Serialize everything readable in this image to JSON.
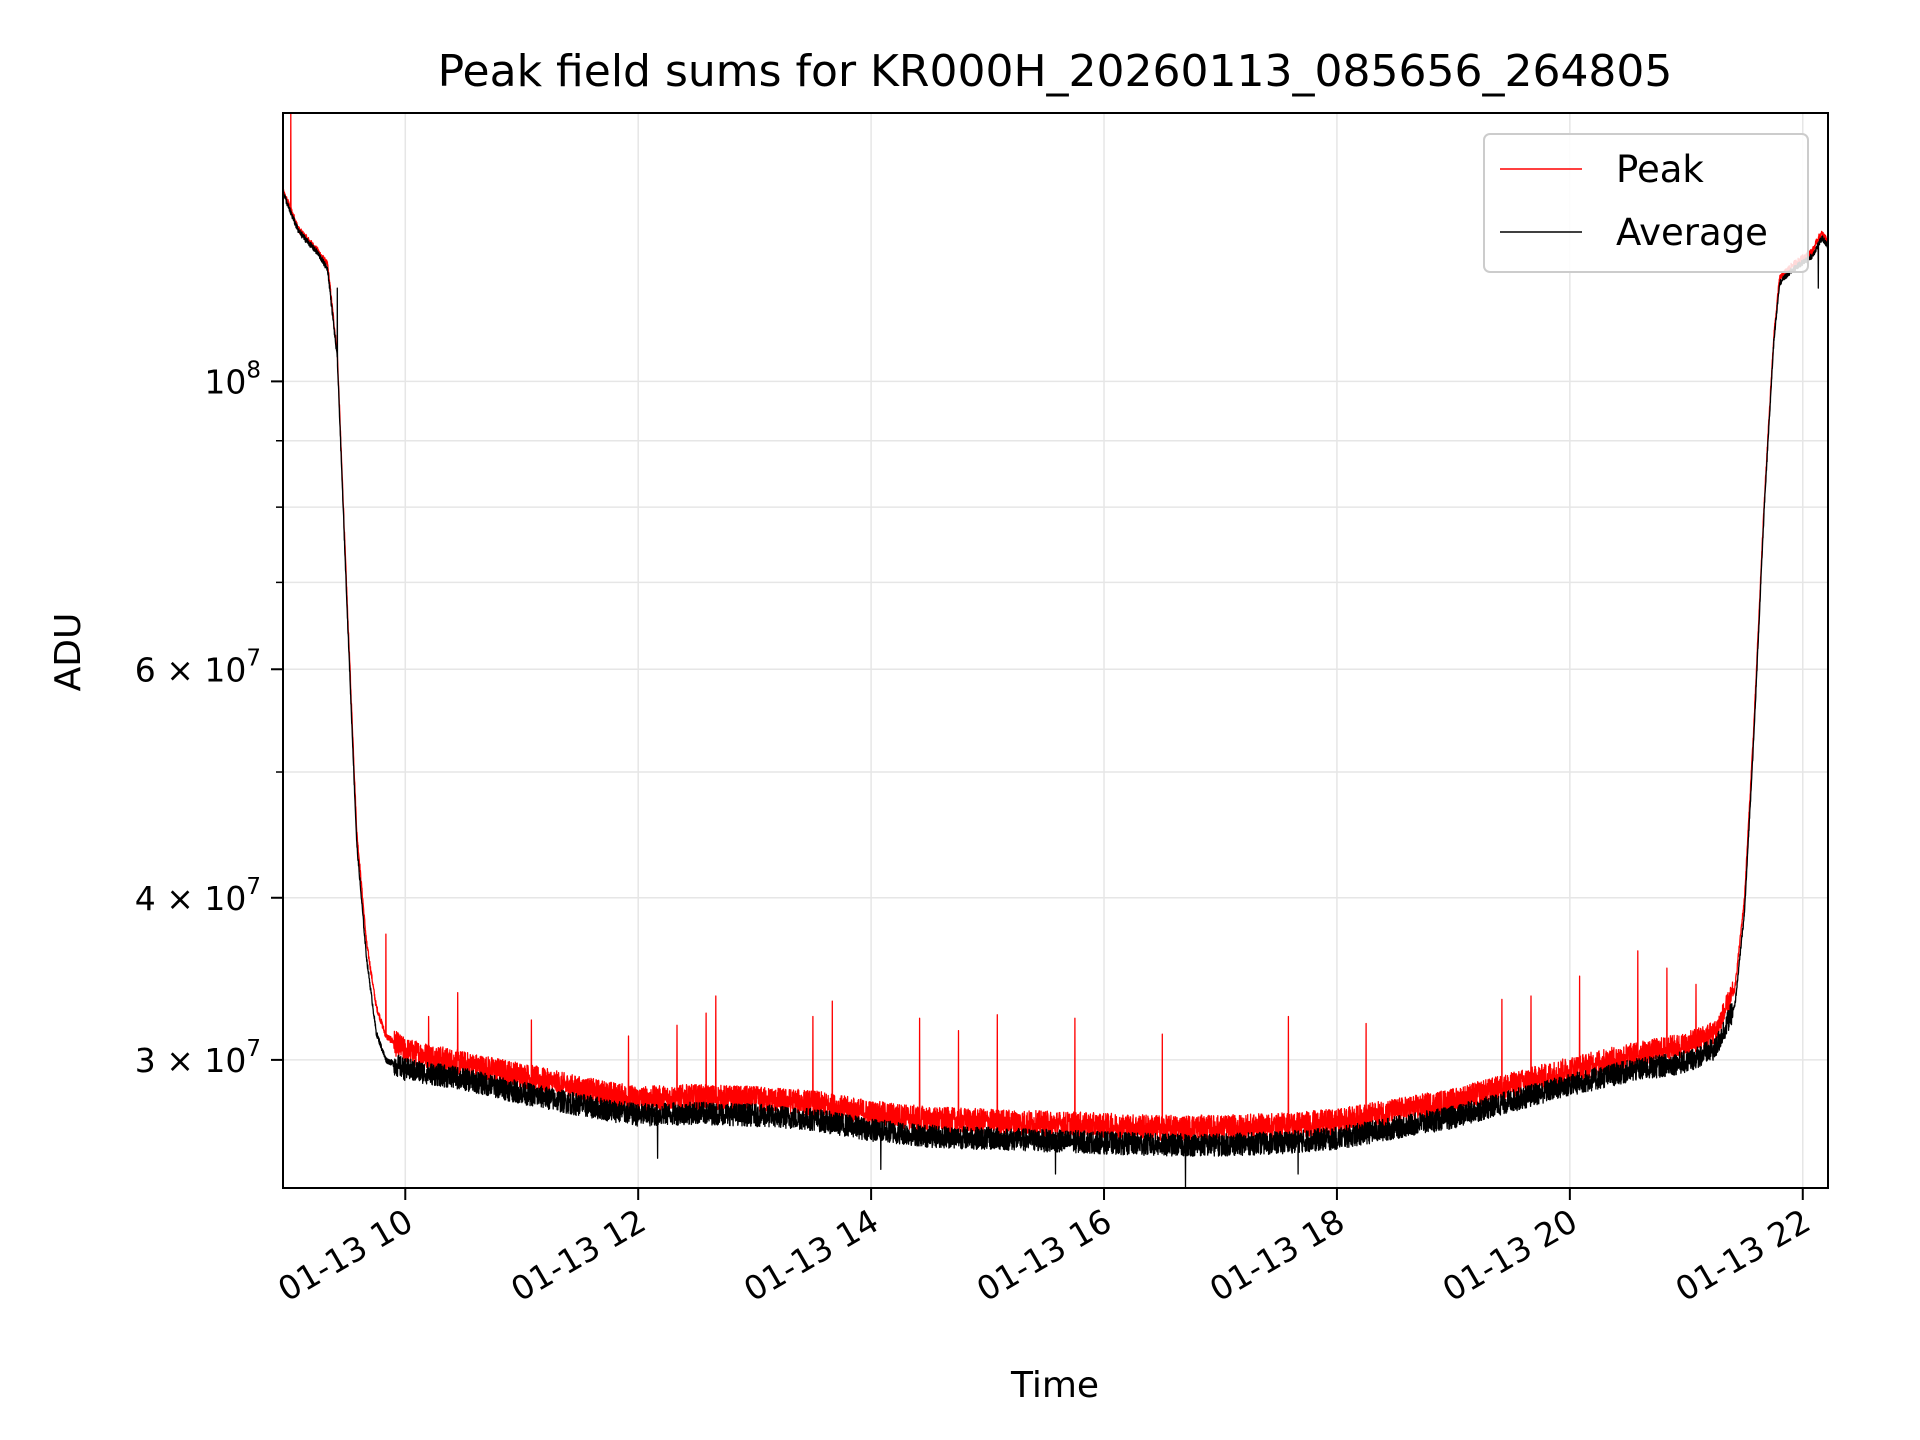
{
  "colors": {
    "peak": "#ff0000",
    "average": "#000000",
    "grid": "#e6e6e6",
    "axis": "#000000",
    "background": "#ffffff"
  },
  "chart_data": {
    "type": "line",
    "title": "Peak field sums for KR000H_20260113_085656_264805",
    "xlabel": "Time",
    "ylabel": "ADU",
    "x_date": "2026-01-13",
    "x_range": [
      "2026-01-13 08:57",
      "2026-01-13 22:13"
    ],
    "y_scale": "log",
    "ylim": [
      23900000,
      161000000
    ],
    "grid": true,
    "legend_position": "upper right",
    "x_ticks": [
      {
        "value": "2026-01-13 10:00",
        "label": "01-13 10"
      },
      {
        "value": "2026-01-13 12:00",
        "label": "01-13 12"
      },
      {
        "value": "2026-01-13 14:00",
        "label": "01-13 14"
      },
      {
        "value": "2026-01-13 16:00",
        "label": "01-13 16"
      },
      {
        "value": "2026-01-13 18:00",
        "label": "01-13 18"
      },
      {
        "value": "2026-01-13 20:00",
        "label": "01-13 20"
      },
      {
        "value": "2026-01-13 22:00",
        "label": "01-13 22"
      }
    ],
    "y_ticks_major": [
      {
        "value": 30000000,
        "label": "3 × 10",
        "exp": "7"
      },
      {
        "value": 40000000,
        "label": "4 × 10",
        "exp": "7"
      },
      {
        "value": 60000000,
        "label": "6 × 10",
        "exp": "7"
      },
      {
        "value": 100000000,
        "label": "10",
        "exp": "8"
      }
    ],
    "y_ticks_minor": [
      50000000,
      70000000,
      80000000,
      90000000
    ],
    "series": [
      {
        "name": "Peak",
        "color": "#ff0000",
        "x": [
          "08:57",
          "09:00",
          "09:05",
          "09:10",
          "09:15",
          "09:20",
          "09:25",
          "09:30",
          "09:35",
          "09:40",
          "09:45",
          "09:50",
          "10:00",
          "10:30",
          "11:00",
          "11:30",
          "12:00",
          "12:30",
          "13:00",
          "13:30",
          "14:00",
          "14:30",
          "15:00",
          "15:30",
          "16:00",
          "16:30",
          "17:00",
          "17:30",
          "18:00",
          "18:30",
          "19:00",
          "19:30",
          "20:00",
          "20:30",
          "21:00",
          "21:15",
          "21:25",
          "21:30",
          "21:35",
          "21:40",
          "21:45",
          "21:48",
          "21:50",
          "21:55",
          "22:00",
          "22:05",
          "22:08",
          "22:10",
          "22:13"
        ],
        "y": [
          140000000,
          137000000,
          131000000,
          128500000,
          126000000,
          123000000,
          105000000,
          68000000,
          45000000,
          37000000,
          33000000,
          31300000,
          30500000,
          29800000,
          29200000,
          28500000,
          28000000,
          28100000,
          28000000,
          27800000,
          27300000,
          27000000,
          26900000,
          26800000,
          26700000,
          26600000,
          26600000,
          26700000,
          26900000,
          27400000,
          27900000,
          28700000,
          29500000,
          30200000,
          30800000,
          31500000,
          34000000,
          40000000,
          55000000,
          80000000,
          108000000,
          120000000,
          121000000,
          123000000,
          124500000,
          126000000,
          129000000,
          130000000,
          128000000
        ],
        "spikes": [
          {
            "x": "09:01",
            "y": 161000000
          },
          {
            "x": "09:50",
            "y": 37500000
          },
          {
            "x": "10:12",
            "y": 32400000
          },
          {
            "x": "10:27",
            "y": 33800000
          },
          {
            "x": "11:05",
            "y": 32200000
          },
          {
            "x": "11:55",
            "y": 31300000
          },
          {
            "x": "12:20",
            "y": 31900000
          },
          {
            "x": "12:35",
            "y": 32600000
          },
          {
            "x": "12:40",
            "y": 33600000
          },
          {
            "x": "13:30",
            "y": 32400000
          },
          {
            "x": "13:40",
            "y": 33300000
          },
          {
            "x": "14:25",
            "y": 32300000
          },
          {
            "x": "14:45",
            "y": 31600000
          },
          {
            "x": "15:05",
            "y": 32500000
          },
          {
            "x": "15:45",
            "y": 32300000
          },
          {
            "x": "16:30",
            "y": 31400000
          },
          {
            "x": "17:35",
            "y": 32400000
          },
          {
            "x": "18:15",
            "y": 32000000
          },
          {
            "x": "19:25",
            "y": 33400000
          },
          {
            "x": "19:40",
            "y": 33600000
          },
          {
            "x": "20:05",
            "y": 34800000
          },
          {
            "x": "20:35",
            "y": 36400000
          },
          {
            "x": "20:50",
            "y": 35300000
          },
          {
            "x": "21:05",
            "y": 34300000
          }
        ]
      },
      {
        "name": "Average",
        "color": "#000000",
        "x": [
          "08:57",
          "09:00",
          "09:05",
          "09:10",
          "09:15",
          "09:20",
          "09:25",
          "09:30",
          "09:35",
          "09:40",
          "09:45",
          "09:50",
          "10:00",
          "10:30",
          "11:00",
          "11:30",
          "12:00",
          "12:30",
          "13:00",
          "13:30",
          "14:00",
          "14:30",
          "15:00",
          "15:30",
          "16:00",
          "16:30",
          "17:00",
          "17:30",
          "18:00",
          "18:30",
          "19:00",
          "19:30",
          "20:00",
          "20:30",
          "21:00",
          "21:15",
          "21:25",
          "21:30",
          "21:35",
          "21:40",
          "21:45",
          "21:48",
          "21:50",
          "21:55",
          "22:00",
          "22:05",
          "22:08",
          "22:10",
          "22:13"
        ],
        "y": [
          140000000,
          136000000,
          130500000,
          128000000,
          125500000,
          122000000,
          104000000,
          67000000,
          44000000,
          36000000,
          31500000,
          30000000,
          29500000,
          29000000,
          28300000,
          27700000,
          27200000,
          27300000,
          27200000,
          27000000,
          26500000,
          26200000,
          26100000,
          26000000,
          25900000,
          25800000,
          25800000,
          25900000,
          26100000,
          26600000,
          27100000,
          27900000,
          28700000,
          29400000,
          29900000,
          30600000,
          33000000,
          39000000,
          54000000,
          79000000,
          107000000,
          119000000,
          120000000,
          122000000,
          123500000,
          125000000,
          127500000,
          129000000,
          127000000
        ],
        "dips": [
          {
            "x": "09:25",
            "y": 118000000
          },
          {
            "x": "12:10",
            "y": 25200000
          },
          {
            "x": "14:05",
            "y": 24700000
          },
          {
            "x": "15:35",
            "y": 24500000
          },
          {
            "x": "16:42",
            "y": 23900000
          },
          {
            "x": "17:40",
            "y": 24500000
          },
          {
            "x": "22:08",
            "y": 118000000
          }
        ]
      }
    ]
  }
}
